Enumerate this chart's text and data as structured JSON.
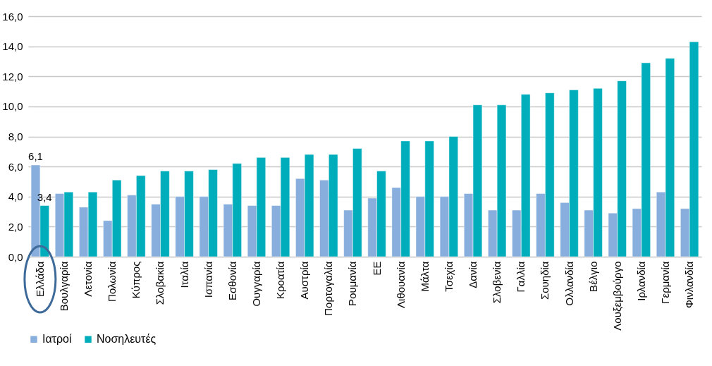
{
  "chart_data": {
    "type": "bar",
    "categories": [
      "Ελλάδα",
      "Βουλγαρία",
      "Λετονία",
      "Πολωνία",
      "Κύπρος",
      "Σλοβακία",
      "Ιταλία",
      "Ισπανία",
      "Εσθονία",
      "Ουγγαρία",
      "Κροατία",
      "Αυστρία",
      "Πορτογαλία",
      "Ρουμανία",
      "ΕΕ",
      "Λιθουανία",
      "Μάλτα",
      "Τσεχία",
      "Δανία",
      "Σλοβενία",
      "Γαλλία",
      "Σουηδία",
      "Ολλανδία",
      "Βέλγιο",
      "Λουξεμβούργο",
      "Ιρλανδία",
      "Γερμανία",
      "Φινλανδία"
    ],
    "series": [
      {
        "name": "Ιατροί",
        "color": "#87aedc",
        "values": [
          6.1,
          4.2,
          3.3,
          2.4,
          4.1,
          3.5,
          4.0,
          4.0,
          3.5,
          3.4,
          3.4,
          5.2,
          5.1,
          3.1,
          3.9,
          4.6,
          4.0,
          4.0,
          4.2,
          3.1,
          3.1,
          4.2,
          3.6,
          3.1,
          2.9,
          3.2,
          4.3,
          3.2
        ]
      },
      {
        "name": "Νοσηλευτές",
        "color": "#00aebb",
        "values": [
          3.4,
          4.3,
          4.3,
          5.1,
          5.4,
          5.7,
          5.7,
          5.8,
          6.2,
          6.6,
          6.6,
          6.8,
          6.8,
          7.2,
          5.7,
          7.7,
          7.7,
          8.0,
          10.1,
          10.1,
          10.8,
          10.9,
          11.1,
          11.2,
          11.7,
          12.9,
          13.2,
          14.3
        ]
      }
    ],
    "ylim": [
      0,
      16
    ],
    "yticks": [
      {
        "value": 0,
        "label": "0,0"
      },
      {
        "value": 2,
        "label": "2,0"
      },
      {
        "value": 4,
        "label": "4,0"
      },
      {
        "value": 6,
        "label": "6,0"
      },
      {
        "value": 8,
        "label": "8,0"
      },
      {
        "value": 10,
        "label": "10,0"
      },
      {
        "value": 12,
        "label": "12,0"
      },
      {
        "value": 14,
        "label": "14,0"
      },
      {
        "value": 16,
        "label": "16,0"
      }
    ],
    "grid": "y",
    "legend": "bottom",
    "annotations": [
      {
        "text": "6,1",
        "x": "Ελλάδα",
        "y": 6.1
      },
      {
        "text": "3,4",
        "x": "Ελλάδα",
        "y": 3.4
      }
    ]
  }
}
